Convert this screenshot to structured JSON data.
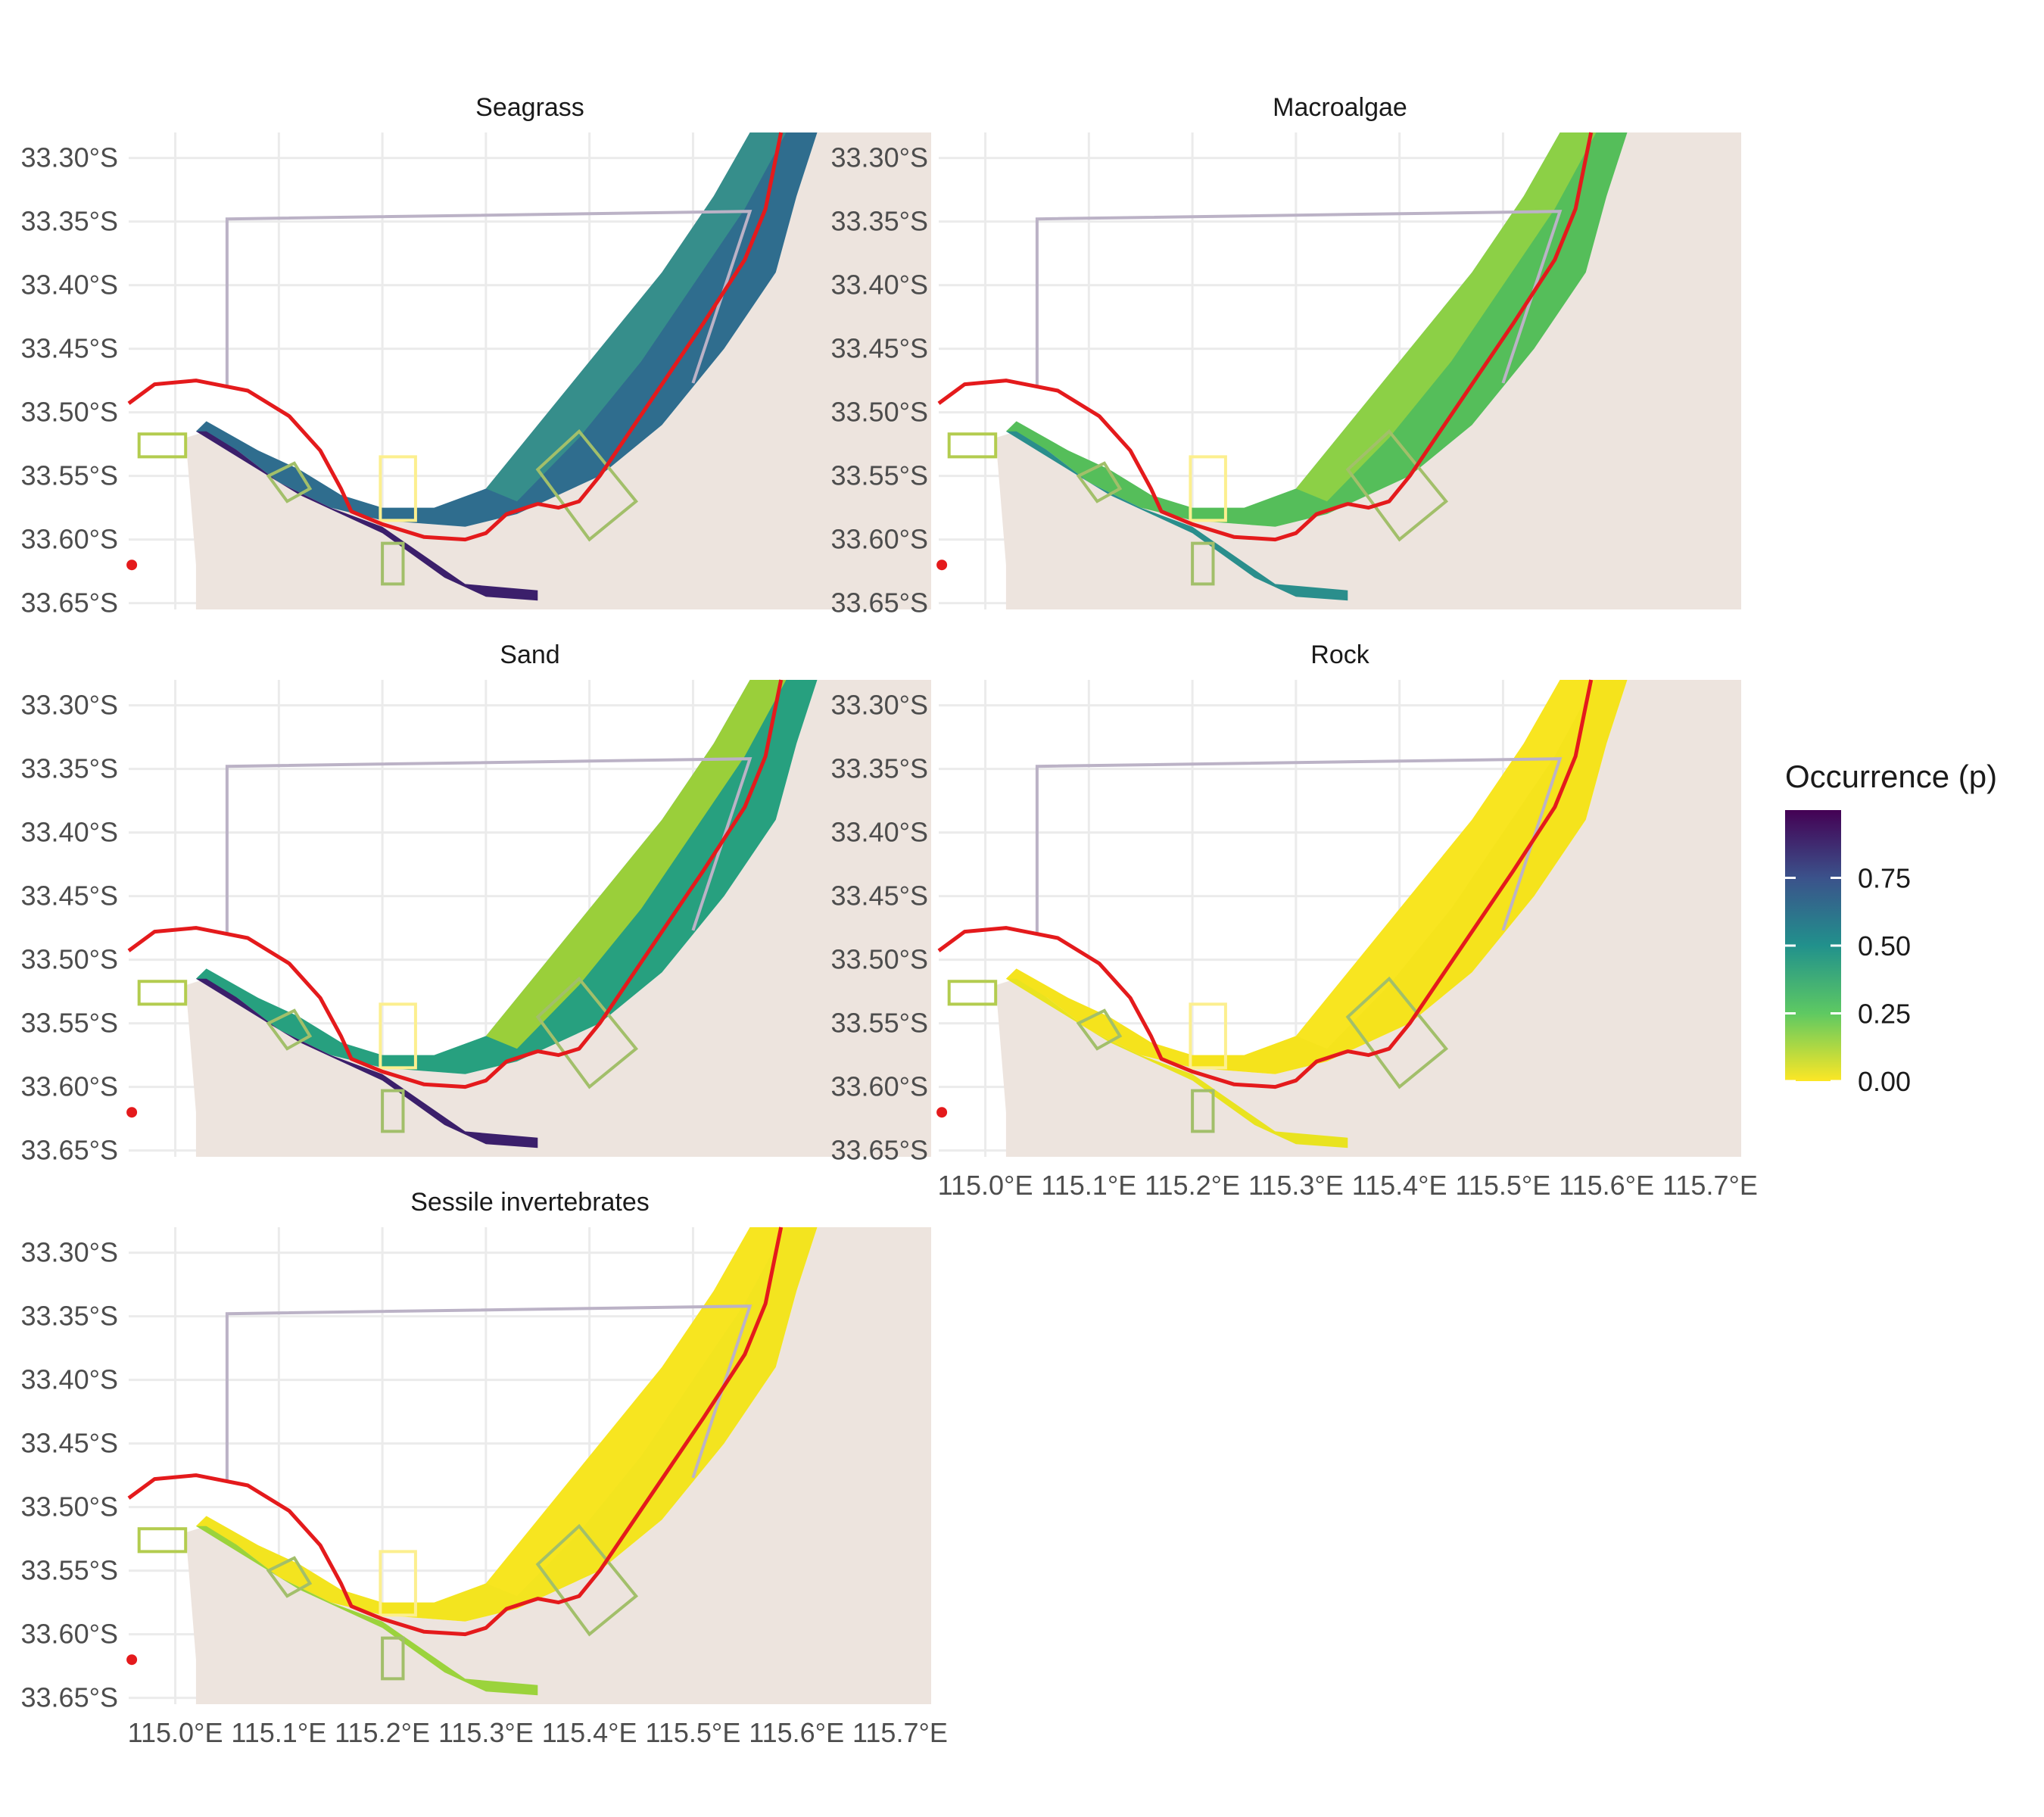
{
  "figure": {
    "x_ticks": [
      "115.0°E",
      "115.1°E",
      "115.2°E",
      "115.3°E",
      "115.4°E",
      "115.5°E",
      "115.6°E",
      "115.7°E"
    ],
    "y_ticks": [
      "33.30°S",
      "33.35°S",
      "33.40°S",
      "33.45°S",
      "33.50°S",
      "33.55°S",
      "33.60°S",
      "33.65°S"
    ],
    "x_tick_values": [
      115.0,
      115.1,
      115.2,
      115.3,
      115.4,
      115.5,
      115.6,
      115.7
    ],
    "y_tick_values": [
      33.3,
      33.35,
      33.4,
      33.45,
      33.5,
      33.55,
      33.6,
      33.65
    ],
    "lon_range": [
      114.955,
      115.73
    ],
    "lat_range": [
      33.28,
      33.655
    ]
  },
  "panels": [
    {
      "title": "Seagrass",
      "fill_main": "#2f6d8e",
      "fill_offshore": "#3a9a8a",
      "fill_nearshore": "#3b1f6b",
      "has_blobs": false
    },
    {
      "title": "Macroalgae",
      "fill_main": "#55be5a",
      "fill_offshore": "#9fd640",
      "fill_nearshore": "#2a8e8c",
      "has_blobs": true
    },
    {
      "title": "Sand",
      "fill_main": "#27a07f",
      "fill_offshore": "#c2df23",
      "fill_nearshore": "#3b1f6b",
      "has_blobs": false
    },
    {
      "title": "Rock",
      "fill_main": "#f5e31c",
      "fill_offshore": "#f8e621",
      "fill_nearshore": "#e9e31f",
      "has_blobs": false
    },
    {
      "title": "Sessile invertebrates",
      "fill_main": "#f3e41f",
      "fill_offshore": "#f8e621",
      "fill_nearshore": "#9bd33c",
      "has_blobs": false
    }
  ],
  "legend": {
    "title": "Occurrence (p)",
    "labels": [
      "0.75",
      "0.50",
      "0.25",
      "0.00"
    ],
    "values": [
      0.75,
      0.5,
      0.25,
      0.0
    ],
    "range": [
      0.0,
      1.0
    ],
    "colors": [
      "#fde725",
      "#5ec962",
      "#21918c",
      "#3b528b",
      "#440154"
    ]
  },
  "colors": {
    "land": "#ede4de",
    "boundary_line": "#e41a1c",
    "grey_box": "#bbb2c6",
    "gridline": "#ebebeb",
    "rect_green": "#b3cc4f",
    "rect_yellow": "#fcef8f",
    "diamond": "#a2bf6a"
  },
  "map_geometry_lonlat": {
    "land_outline": [
      [
        115.02,
        33.655
      ],
      [
        115.02,
        33.62
      ],
      [
        115.015,
        33.57
      ],
      [
        115.01,
        33.52
      ],
      [
        115.03,
        33.515
      ],
      [
        115.06,
        33.53
      ],
      [
        115.1,
        33.555
      ],
      [
        115.15,
        33.575
      ],
      [
        115.2,
        33.585
      ],
      [
        115.28,
        33.59
      ],
      [
        115.33,
        33.58
      ],
      [
        115.41,
        33.55
      ],
      [
        115.47,
        33.51
      ],
      [
        115.53,
        33.45
      ],
      [
        115.58,
        33.39
      ],
      [
        115.6,
        33.33
      ],
      [
        115.62,
        33.28
      ],
      [
        115.73,
        33.28
      ],
      [
        115.73,
        33.655
      ]
    ],
    "habitat_band": [
      [
        115.02,
        33.515
      ],
      [
        115.06,
        33.53
      ],
      [
        115.1,
        33.555
      ],
      [
        115.15,
        33.575
      ],
      [
        115.2,
        33.585
      ],
      [
        115.28,
        33.59
      ],
      [
        115.33,
        33.58
      ],
      [
        115.41,
        33.55
      ],
      [
        115.47,
        33.51
      ],
      [
        115.53,
        33.45
      ],
      [
        115.58,
        33.39
      ],
      [
        115.6,
        33.33
      ],
      [
        115.62,
        33.28
      ],
      [
        115.555,
        33.28
      ],
      [
        115.52,
        33.33
      ],
      [
        115.47,
        33.39
      ],
      [
        115.41,
        33.45
      ],
      [
        115.35,
        33.51
      ],
      [
        115.3,
        33.56
      ],
      [
        115.25,
        33.575
      ],
      [
        115.2,
        33.575
      ],
      [
        115.16,
        33.565
      ],
      [
        115.12,
        33.545
      ],
      [
        115.08,
        33.53
      ],
      [
        115.03,
        33.507
      ]
    ],
    "offshore_band": [
      [
        115.555,
        33.28
      ],
      [
        115.52,
        33.33
      ],
      [
        115.47,
        33.39
      ],
      [
        115.41,
        33.45
      ],
      [
        115.35,
        33.51
      ],
      [
        115.3,
        33.56
      ],
      [
        115.33,
        33.57
      ],
      [
        115.39,
        33.52
      ],
      [
        115.45,
        33.46
      ],
      [
        115.5,
        33.4
      ],
      [
        115.55,
        33.34
      ],
      [
        115.59,
        33.28
      ]
    ],
    "nearshore_band": [
      [
        115.02,
        33.515
      ],
      [
        115.05,
        33.53
      ],
      [
        115.09,
        33.55
      ],
      [
        115.12,
        33.565
      ],
      [
        115.16,
        33.58
      ],
      [
        115.2,
        33.595
      ],
      [
        115.26,
        33.63
      ],
      [
        115.3,
        33.645
      ],
      [
        115.35,
        33.648
      ],
      [
        115.35,
        33.64
      ],
      [
        115.28,
        33.635
      ],
      [
        115.2,
        33.59
      ],
      [
        115.15,
        33.575
      ],
      [
        115.1,
        33.555
      ],
      [
        115.06,
        33.53
      ],
      [
        115.03,
        33.515
      ]
    ],
    "red_boundary": [
      [
        114.955,
        33.493
      ],
      [
        114.98,
        33.478
      ],
      [
        115.02,
        33.475
      ],
      [
        115.07,
        33.483
      ],
      [
        115.11,
        33.503
      ],
      [
        115.14,
        33.53
      ],
      [
        115.16,
        33.56
      ],
      [
        115.17,
        33.578
      ],
      [
        115.2,
        33.588
      ],
      [
        115.24,
        33.598
      ],
      [
        115.28,
        33.6
      ],
      [
        115.3,
        33.595
      ],
      [
        115.32,
        33.58
      ],
      [
        115.35,
        33.572
      ],
      [
        115.37,
        33.575
      ],
      [
        115.39,
        33.57
      ],
      [
        115.41,
        33.55
      ],
      [
        115.46,
        33.49
      ],
      [
        115.51,
        33.43
      ],
      [
        115.55,
        33.38
      ],
      [
        115.57,
        33.34
      ],
      [
        115.58,
        33.3
      ],
      [
        115.585,
        33.28
      ]
    ],
    "grey_box": [
      [
        115.05,
        33.48
      ],
      [
        115.05,
        33.348
      ],
      [
        115.555,
        33.342
      ],
      [
        115.5,
        33.477
      ]
    ],
    "green_rect": [
      [
        114.965,
        33.517
      ],
      [
        115.01,
        33.517
      ],
      [
        115.01,
        33.535
      ],
      [
        114.965,
        33.535
      ]
    ],
    "yellow_rect": [
      [
        115.198,
        33.535
      ],
      [
        115.232,
        33.535
      ],
      [
        115.232,
        33.585
      ],
      [
        115.198,
        33.585
      ]
    ],
    "small_rect": [
      [
        115.2,
        33.603
      ],
      [
        115.22,
        33.603
      ],
      [
        115.22,
        33.635
      ],
      [
        115.2,
        33.635
      ]
    ],
    "diamond_left": [
      [
        115.09,
        33.55
      ],
      [
        115.115,
        33.54
      ],
      [
        115.13,
        33.56
      ],
      [
        115.108,
        33.57
      ]
    ],
    "diamond_right": [
      [
        115.35,
        33.545
      ],
      [
        115.39,
        33.515
      ],
      [
        115.445,
        33.57
      ],
      [
        115.4,
        33.6
      ]
    ]
  }
}
